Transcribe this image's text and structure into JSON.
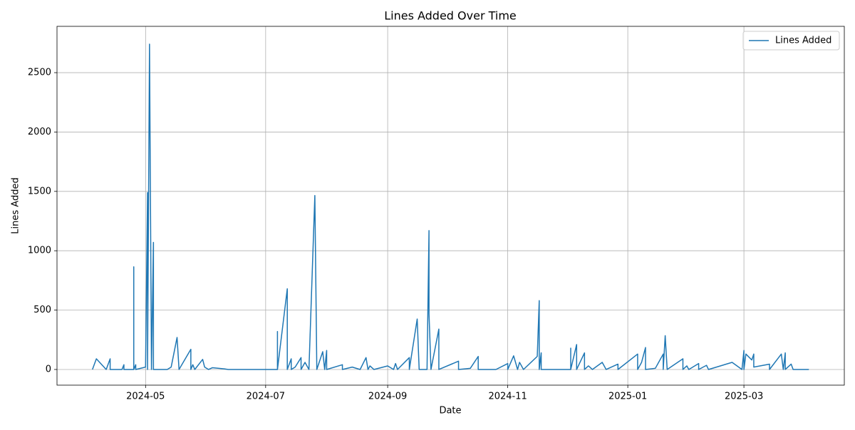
{
  "chart_data": {
    "type": "line",
    "title": "Lines Added Over Time",
    "x_label": "Date",
    "y_label": "Lines Added",
    "x": [
      19817,
      19819,
      19824,
      19826,
      19826,
      19832,
      19833,
      19833,
      19838,
      19838,
      19838,
      19839,
      19839,
      19844,
      19845,
      19845,
      19846,
      19847,
      19848,
      19848,
      19855,
      19857,
      19860,
      19861,
      19867,
      19867,
      19868,
      19869,
      19873,
      19874,
      19876,
      19878,
      19884,
      19886,
      19911,
      19911,
      19911,
      19916,
      19916,
      19918,
      19918,
      19920,
      19923,
      19923,
      19925,
      19927,
      19930,
      19931,
      19934,
      19935,
      19936,
      19936,
      19944,
      19944,
      19949,
      19953,
      19956,
      19957,
      19958,
      19960,
      19967,
      19970,
      19971,
      19972,
      19978,
      19978,
      19982,
      19983,
      19987,
      19988,
      19988,
      19989,
      19993,
      19993,
      20003,
      20003,
      20009,
      20013,
      20013,
      20022,
      20028,
      20028,
      20031,
      20033,
      20034,
      20036,
      20043,
      20044,
      20044,
      20045,
      20045,
      20060,
      20060,
      20060,
      20063,
      20063,
      20067,
      20067,
      20069,
      20071,
      20076,
      20078,
      20084,
      20084,
      20094,
      20094,
      20096,
      20098,
      20098,
      20103,
      20107,
      20107,
      20108,
      20109,
      20117,
      20117,
      20119,
      20120,
      20125,
      20125,
      20129,
      20130,
      20142,
      20147,
      20148,
      20148,
      20149,
      20152,
      20153,
      20153,
      20161,
      20161,
      20167,
      20168,
      20169,
      20169,
      20172,
      20173,
      20181
    ],
    "series": [
      {
        "name": "Lines Added",
        "color": "#1f77b4",
        "values": [
          0,
          90,
          0,
          90,
          0,
          0,
          40,
          0,
          0,
          865,
          0,
          40,
          0,
          20,
          1490,
          0,
          2740,
          0,
          1070,
          0,
          0,
          20,
          270,
          0,
          170,
          0,
          40,
          0,
          85,
          20,
          0,
          15,
          5,
          0,
          0,
          320,
          0,
          680,
          0,
          90,
          0,
          20,
          100,
          0,
          60,
          0,
          1465,
          0,
          150,
          0,
          160,
          0,
          40,
          0,
          20,
          0,
          100,
          0,
          30,
          0,
          30,
          0,
          50,
          0,
          100,
          0,
          425,
          0,
          0,
          1170,
          470,
          0,
          340,
          0,
          70,
          0,
          10,
          110,
          0,
          0,
          50,
          0,
          115,
          0,
          60,
          0,
          110,
          580,
          0,
          140,
          0,
          0,
          180,
          0,
          210,
          0,
          140,
          0,
          30,
          0,
          60,
          0,
          45,
          0,
          130,
          0,
          60,
          185,
          0,
          10,
          130,
          0,
          285,
          0,
          90,
          0,
          30,
          0,
          50,
          0,
          35,
          0,
          60,
          0,
          160,
          0,
          130,
          80,
          130,
          20,
          45,
          0,
          130,
          0,
          140,
          0,
          45,
          0,
          0
        ]
      }
    ],
    "xlim": [
      19799,
      20199
    ],
    "xticks": [
      {
        "value": 19844,
        "label": "2024-05"
      },
      {
        "value": 19905,
        "label": "2024-07"
      },
      {
        "value": 19967,
        "label": "2024-09"
      },
      {
        "value": 20028,
        "label": "2024-11"
      },
      {
        "value": 20089,
        "label": "2025-01"
      },
      {
        "value": 20148,
        "label": "2025-03"
      }
    ],
    "ylim": [
      -132,
      2890
    ],
    "yticks": [
      0,
      500,
      1000,
      1500,
      2000,
      2500
    ],
    "grid": true,
    "legend": "upper right"
  }
}
